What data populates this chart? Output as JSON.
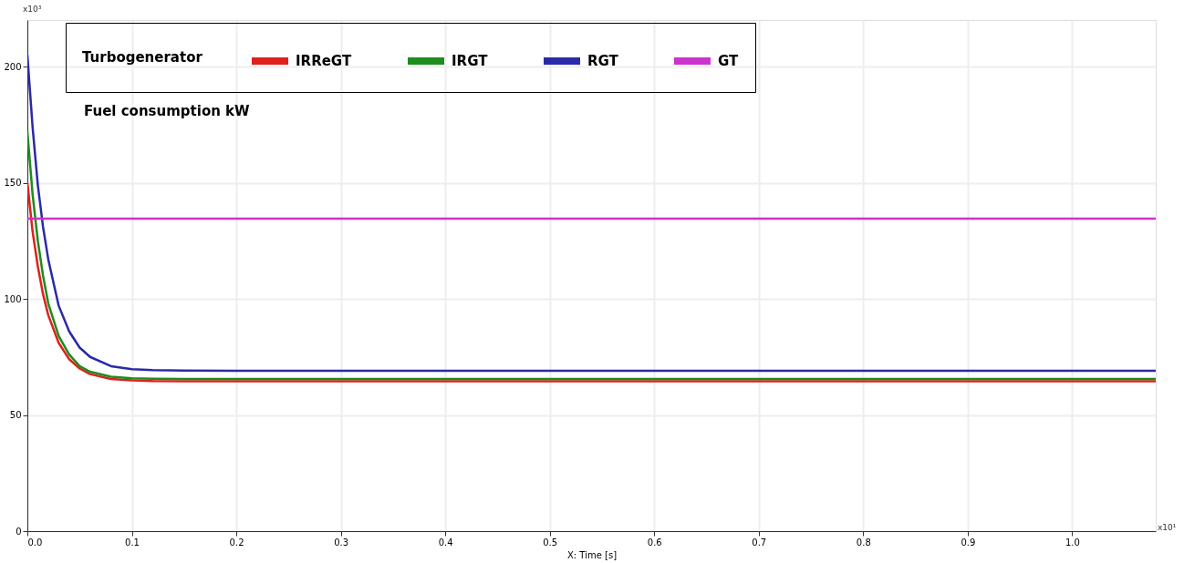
{
  "chart_data": {
    "type": "line",
    "xlabel": "X: Time [s]",
    "legend_title": "Turbogenerator",
    "ylabel": "Fuel consumption kW",
    "annotations": [
      "x10³",
      "x10¹"
    ],
    "xlim": [
      0,
      1.08
    ],
    "ylim": [
      0,
      220
    ],
    "xticks": [
      {
        "value": 0,
        "label": "0.0"
      },
      0.1,
      0.2,
      0.3,
      0.4,
      0.5,
      0.6,
      0.7,
      0.8,
      0.9,
      {
        "value": 1,
        "label": "1.0"
      }
    ],
    "yticks": [
      0,
      50,
      100,
      150,
      200
    ],
    "grid": true,
    "legend": "top left",
    "line_style": "solid",
    "marker": "none",
    "x": [
      0,
      0.005,
      0.01,
      0.015,
      0.02,
      0.03,
      0.04,
      0.05,
      0.06,
      0.08,
      0.1,
      0.12,
      0.15,
      0.2,
      0.4,
      0.6,
      0.8,
      1.0,
      1.08
    ],
    "series": [
      {
        "name": "IRReGT",
        "color": "#e0201a",
        "values": [
          150,
          129,
          114,
          102,
          93,
          81,
          74,
          70,
          67.6,
          65.5,
          64.9,
          64.6,
          64.5,
          64.5,
          64.5,
          64.5,
          64.5,
          64.5,
          64.5
        ]
      },
      {
        "name": "IRGT",
        "color": "#1e8c1e",
        "values": [
          172,
          145,
          125,
          110,
          98,
          84,
          76,
          71,
          68.6,
          66.5,
          65.8,
          65.6,
          65.5,
          65.5,
          65.5,
          65.5,
          65.5,
          65.5,
          65.5
        ]
      },
      {
        "name": "RGT",
        "color": "#2a2aa8",
        "values": [
          205,
          174,
          149,
          131,
          117,
          97,
          86,
          79,
          75,
          71,
          69.7,
          69.3,
          69.1,
          69,
          69,
          69,
          69,
          69,
          69
        ]
      },
      {
        "name": "GT",
        "color": "#cc33cc",
        "values": [
          134.5,
          134.5,
          134.5,
          134.5,
          134.5,
          134.5,
          134.5,
          134.5,
          134.5,
          134.5,
          134.5,
          134.5,
          134.5,
          134.5,
          134.5,
          134.5,
          134.5,
          134.5,
          134.5
        ]
      }
    ]
  }
}
